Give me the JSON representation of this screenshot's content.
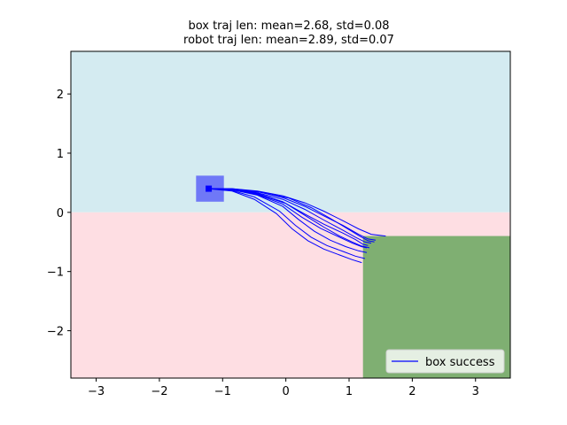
{
  "chart_data": {
    "type": "line",
    "title_lines": [
      "box traj len: mean=2.68, std=0.08",
      "robot traj len: mean=2.89, std=0.07"
    ],
    "xlabel": "",
    "ylabel": "",
    "xlim": [
      -3.4,
      3.55
    ],
    "ylim": [
      -2.8,
      2.72
    ],
    "xticks": [
      -3,
      -2,
      -1,
      0,
      1,
      2,
      3
    ],
    "yticks": [
      -2,
      -1,
      0,
      1,
      2
    ],
    "grid": false,
    "legend": {
      "placement": "lower-right",
      "entries": [
        "box success"
      ]
    },
    "regions": [
      {
        "name": "upper-region",
        "x": [
          -3.4,
          3.55
        ],
        "y": [
          0,
          2.72
        ],
        "color": "#d4ebf1"
      },
      {
        "name": "lower-region",
        "x": [
          -3.4,
          3.55
        ],
        "y": [
          -2.8,
          0
        ],
        "color": "#fedee3"
      },
      {
        "name": "goal-region",
        "x": [
          1.22,
          3.55
        ],
        "y": [
          -2.8,
          -0.4
        ],
        "color": "#7faf72"
      },
      {
        "name": "box-start",
        "x": [
          -1.42,
          -0.98
        ],
        "y": [
          0.18,
          0.62
        ],
        "color": "#6f78f7"
      }
    ],
    "start_marker": {
      "x": -1.22,
      "y": 0.4,
      "color": "#0000ff"
    },
    "series_color": "#0000ff",
    "series": [
      {
        "points": [
          [
            -1.22,
            0.4
          ],
          [
            -0.85,
            0.4
          ],
          [
            -0.45,
            0.36
          ],
          [
            -0.05,
            0.28
          ],
          [
            0.3,
            0.16
          ],
          [
            0.6,
            0.02
          ],
          [
            0.9,
            -0.14
          ],
          [
            1.15,
            -0.28
          ],
          [
            1.35,
            -0.37
          ],
          [
            1.58,
            -0.4
          ]
        ]
      },
      {
        "points": [
          [
            -1.22,
            0.4
          ],
          [
            -0.85,
            0.4
          ],
          [
            -0.45,
            0.35
          ],
          [
            -0.05,
            0.25
          ],
          [
            0.3,
            0.1
          ],
          [
            0.6,
            -0.06
          ],
          [
            0.9,
            -0.22
          ],
          [
            1.15,
            -0.37
          ],
          [
            1.3,
            -0.45
          ],
          [
            1.42,
            -0.47
          ]
        ]
      },
      {
        "points": [
          [
            -1.22,
            0.4
          ],
          [
            -0.85,
            0.39
          ],
          [
            -0.45,
            0.33
          ],
          [
            -0.05,
            0.22
          ],
          [
            0.3,
            0.05
          ],
          [
            0.6,
            -0.13
          ],
          [
            0.9,
            -0.3
          ],
          [
            1.1,
            -0.42
          ],
          [
            1.25,
            -0.5
          ],
          [
            1.35,
            -0.52
          ]
        ]
      },
      {
        "points": [
          [
            -1.22,
            0.4
          ],
          [
            -0.85,
            0.39
          ],
          [
            -0.45,
            0.32
          ],
          [
            -0.05,
            0.18
          ],
          [
            0.3,
            -0.03
          ],
          [
            0.6,
            -0.2
          ],
          [
            0.9,
            -0.35
          ],
          [
            1.1,
            -0.46
          ],
          [
            1.22,
            -0.54
          ],
          [
            1.3,
            -0.56
          ]
        ]
      },
      {
        "points": [
          [
            -1.22,
            0.4
          ],
          [
            -0.85,
            0.38
          ],
          [
            -0.45,
            0.3
          ],
          [
            -0.05,
            0.14
          ],
          [
            0.25,
            -0.08
          ],
          [
            0.55,
            -0.27
          ],
          [
            0.85,
            -0.42
          ],
          [
            1.05,
            -0.52
          ],
          [
            1.2,
            -0.58
          ],
          [
            1.28,
            -0.6
          ]
        ]
      },
      {
        "points": [
          [
            -1.22,
            0.4
          ],
          [
            -0.85,
            0.38
          ],
          [
            -0.45,
            0.29
          ],
          [
            -0.05,
            0.1
          ],
          [
            0.2,
            -0.12
          ],
          [
            0.45,
            -0.32
          ],
          [
            0.7,
            -0.47
          ],
          [
            0.95,
            -0.58
          ],
          [
            1.15,
            -0.65
          ],
          [
            1.28,
            -0.68
          ]
        ]
      },
      {
        "points": [
          [
            -1.22,
            0.4
          ],
          [
            -0.85,
            0.37
          ],
          [
            -0.5,
            0.26
          ],
          [
            -0.1,
            0.02
          ],
          [
            0.15,
            -0.22
          ],
          [
            0.4,
            -0.42
          ],
          [
            0.65,
            -0.56
          ],
          [
            0.9,
            -0.66
          ],
          [
            1.1,
            -0.74
          ],
          [
            1.25,
            -0.78
          ]
        ]
      },
      {
        "points": [
          [
            -1.22,
            0.4
          ],
          [
            -0.85,
            0.36
          ],
          [
            -0.5,
            0.22
          ],
          [
            -0.15,
            -0.02
          ],
          [
            0.1,
            -0.28
          ],
          [
            0.35,
            -0.48
          ],
          [
            0.6,
            -0.62
          ],
          [
            0.85,
            -0.72
          ],
          [
            1.05,
            -0.8
          ],
          [
            1.2,
            -0.85
          ]
        ]
      },
      {
        "points": [
          [
            -1.22,
            0.4
          ],
          [
            -0.85,
            0.39
          ],
          [
            -0.4,
            0.34
          ],
          [
            0.05,
            0.24
          ],
          [
            0.4,
            0.08
          ],
          [
            0.7,
            -0.1
          ],
          [
            0.95,
            -0.26
          ],
          [
            1.15,
            -0.39
          ],
          [
            1.3,
            -0.48
          ],
          [
            1.4,
            -0.5
          ]
        ]
      },
      {
        "points": [
          [
            -1.22,
            0.4
          ],
          [
            -0.85,
            0.38
          ],
          [
            -0.45,
            0.31
          ],
          [
            0.0,
            0.15
          ],
          [
            0.3,
            -0.05
          ],
          [
            0.6,
            -0.25
          ],
          [
            0.85,
            -0.4
          ],
          [
            1.05,
            -0.5
          ],
          [
            1.2,
            -0.57
          ],
          [
            1.32,
            -0.6
          ]
        ]
      }
    ]
  }
}
